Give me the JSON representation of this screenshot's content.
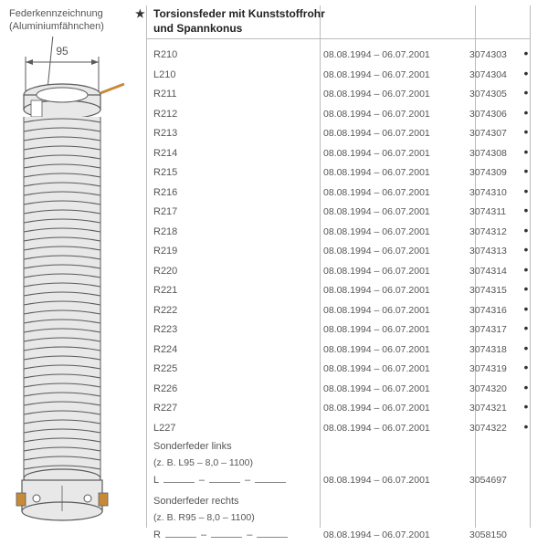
{
  "header": {
    "label_line1": "Federkennzeichnung",
    "label_line2": "(Aluminiumfähnchen)",
    "star": "★",
    "title_line1": "Torsionsfeder mit Kunststoffrohr",
    "title_line2": "und Spannkonus"
  },
  "illustration": {
    "dimension_label": "95",
    "colors": {
      "stroke": "#5a5a5a",
      "fill": "#e8e8e8",
      "highlight": "#c78a3a"
    }
  },
  "rows": [
    {
      "code": "R210",
      "dates": "08.08.1994 – 06.07.2001",
      "partno": "3074303",
      "dot": "•"
    },
    {
      "code": "L210",
      "dates": "08.08.1994 – 06.07.2001",
      "partno": "3074304",
      "dot": "•"
    },
    {
      "code": "R211",
      "dates": "08.08.1994 – 06.07.2001",
      "partno": "3074305",
      "dot": "•"
    },
    {
      "code": "R212",
      "dates": "08.08.1994 – 06.07.2001",
      "partno": "3074306",
      "dot": "•"
    },
    {
      "code": "R213",
      "dates": "08.08.1994 – 06.07.2001",
      "partno": "3074307",
      "dot": "•"
    },
    {
      "code": "R214",
      "dates": "08.08.1994 – 06.07.2001",
      "partno": "3074308",
      "dot": "•"
    },
    {
      "code": "R215",
      "dates": "08.08.1994 – 06.07.2001",
      "partno": "3074309",
      "dot": "•"
    },
    {
      "code": "R216",
      "dates": "08.08.1994 – 06.07.2001",
      "partno": "3074310",
      "dot": "•"
    },
    {
      "code": "R217",
      "dates": "08.08.1994 – 06.07.2001",
      "partno": "3074311",
      "dot": "•"
    },
    {
      "code": "R218",
      "dates": "08.08.1994 – 06.07.2001",
      "partno": "3074312",
      "dot": "•"
    },
    {
      "code": "R219",
      "dates": "08.08.1994 – 06.07.2001",
      "partno": "3074313",
      "dot": "•"
    },
    {
      "code": "R220",
      "dates": "08.08.1994 – 06.07.2001",
      "partno": "3074314",
      "dot": "•"
    },
    {
      "code": "R221",
      "dates": "08.08.1994 – 06.07.2001",
      "partno": "3074315",
      "dot": "•"
    },
    {
      "code": "R222",
      "dates": "08.08.1994 – 06.07.2001",
      "partno": "3074316",
      "dot": "•"
    },
    {
      "code": "R223",
      "dates": "08.08.1994 – 06.07.2001",
      "partno": "3074317",
      "dot": "•"
    },
    {
      "code": "R224",
      "dates": "08.08.1994 – 06.07.2001",
      "partno": "3074318",
      "dot": "•"
    },
    {
      "code": "R225",
      "dates": "08.08.1994 – 06.07.2001",
      "partno": "3074319",
      "dot": "•"
    },
    {
      "code": "R226",
      "dates": "08.08.1994 – 06.07.2001",
      "partno": "3074320",
      "dot": "•"
    },
    {
      "code": "R227",
      "dates": "08.08.1994 – 06.07.2001",
      "partno": "3074321",
      "dot": "•"
    },
    {
      "code": "L227",
      "dates": "08.08.1994 – 06.07.2001",
      "partno": "3074322",
      "dot": "•"
    }
  ],
  "specials": [
    {
      "label": "Sonderfeder links",
      "sub": "(z. B. L95 – 8,0 – 1100)",
      "prefix": "L",
      "dates": "08.08.1994 – 06.07.2001",
      "partno": "3054697"
    },
    {
      "label": "Sonderfeder rechts",
      "sub": "(z. B. R95 – 8,0 – 1100)",
      "prefix": "R",
      "dates": "08.08.1994 – 06.07.2001",
      "partno": "3058150"
    }
  ]
}
